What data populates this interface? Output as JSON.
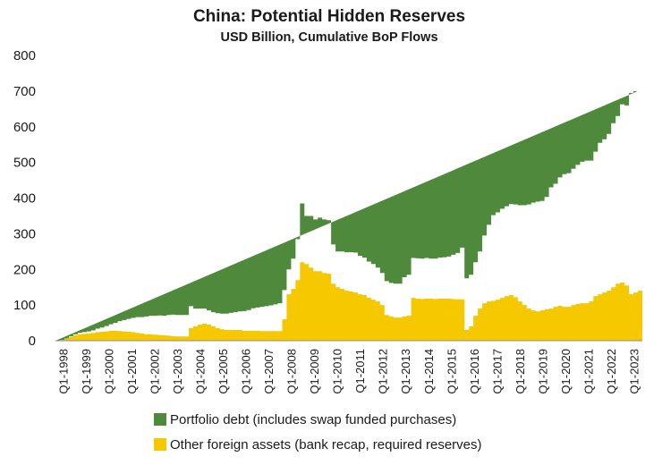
{
  "chart_data": {
    "type": "area",
    "stacked": true,
    "title": "China: Potential Hidden Reserves",
    "subtitle": "USD Billion, Cumulative BoP Flows",
    "xlabel": "",
    "ylabel": "",
    "ylim": [
      0,
      800
    ],
    "yticks": [
      "0",
      "100",
      "200",
      "300",
      "400",
      "500",
      "600",
      "700",
      "800"
    ],
    "grid": false,
    "legend_position": "bottom",
    "x_tick_labels": [
      "Q1-1998",
      "Q1-1999",
      "Q1-2000",
      "Q1-2001",
      "Q1-2002",
      "Q1-2003",
      "Q1-2004",
      "Q1-2005",
      "Q1-2006",
      "Q1-2007",
      "Q1-2008",
      "Q1-2009",
      "Q1-2010",
      "Q1-2011",
      "Q1-2012",
      "Q1-2013",
      "Q1-2014",
      "Q1-2015",
      "Q1-2016",
      "Q1-2017",
      "Q1-2018",
      "Q1-2019",
      "Q1-2020",
      "Q1-2021",
      "Q1-2022",
      "Q1-2023"
    ],
    "x_start": "Q1-1998",
    "x_end": "Q1-2023",
    "series": [
      {
        "name": "Other foreign assets (bank recap, required reserves)",
        "color": "#f5c800",
        "values": [
          0,
          2,
          5,
          10,
          15,
          18,
          19,
          20,
          22,
          24,
          25,
          26,
          28,
          28,
          27,
          26,
          25,
          24,
          22,
          20,
          18,
          18,
          17,
          16,
          15,
          14,
          13,
          12,
          12,
          12,
          35,
          40,
          45,
          48,
          45,
          40,
          35,
          32,
          30,
          30,
          30,
          30,
          28,
          28,
          28,
          28,
          27,
          27,
          27,
          27,
          27,
          60,
          130,
          145,
          170,
          220,
          215,
          205,
          195,
          195,
          190,
          188,
          160,
          150,
          145,
          140,
          138,
          135,
          130,
          128,
          120,
          115,
          110,
          100,
          72,
          68,
          65,
          65,
          68,
          70,
          120,
          118,
          117,
          118,
          118,
          117,
          118,
          118,
          118,
          117,
          116,
          116,
          30,
          40,
          70,
          90,
          105,
          110,
          112,
          115,
          120,
          125,
          128,
          122,
          110,
          100,
          90,
          85,
          82,
          85,
          88,
          90,
          95,
          98,
          95,
          95,
          100,
          103,
          105,
          105,
          110,
          125,
          130,
          135,
          140,
          150,
          160,
          163,
          155,
          130,
          135,
          140
        ]
      },
      {
        "name": "Portfolio debt (includes swap funded purchases)",
        "color": "#4f8a3c",
        "values": [
          0,
          0,
          1,
          2,
          3,
          4,
          5,
          6,
          7,
          10,
          12,
          15,
          18,
          22,
          28,
          32,
          36,
          40,
          44,
          46,
          50,
          52,
          53,
          55,
          55,
          58,
          60,
          60,
          60,
          60,
          62,
          50,
          45,
          42,
          40,
          40,
          42,
          44,
          46,
          48,
          50,
          52,
          55,
          58,
          63,
          65,
          68,
          70,
          72,
          75,
          78,
          82,
          70,
          85,
          115,
          165,
          135,
          145,
          145,
          150,
          150,
          150,
          110,
          100,
          105,
          108,
          110,
          112,
          108,
          105,
          102,
          100,
          95,
          90,
          95,
          94,
          95,
          95,
          110,
          115,
          112,
          113,
          113,
          114,
          112,
          113,
          115,
          116,
          118,
          124,
          130,
          145,
          145,
          145,
          150,
          160,
          190,
          215,
          240,
          245,
          250,
          252,
          255,
          260,
          270,
          280,
          292,
          302,
          308,
          307,
          315,
          340,
          345,
          360,
          372,
          375,
          382,
          390,
          397,
          400,
          395,
          405,
          425,
          430,
          440,
          460,
          470,
          500,
          505,
          565,
          565
        ]
      }
    ]
  }
}
